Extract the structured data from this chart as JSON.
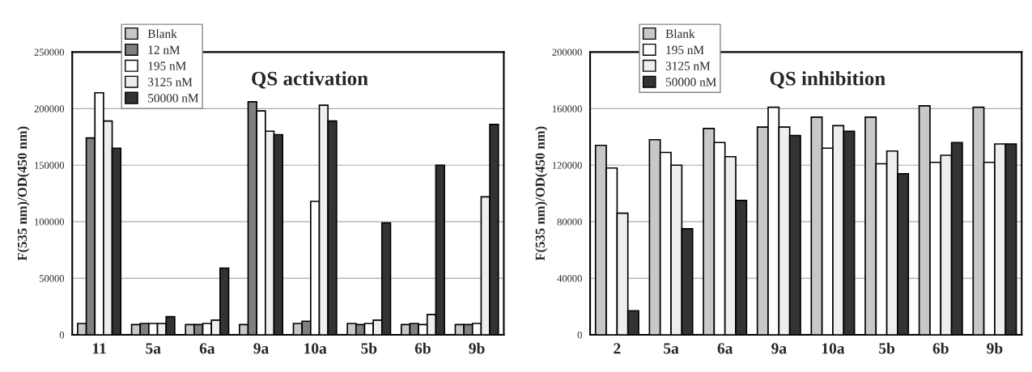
{
  "chart_data": [
    {
      "type": "bar",
      "title": "QS activation",
      "ylabel": "F(535 nm)/OD(450 nm)",
      "categories": [
        "11",
        "5a",
        "6a",
        "9a",
        "10a",
        "5b",
        "6b",
        "9b"
      ],
      "series": [
        {
          "name": "Blank",
          "color": "#c8c8c8",
          "values": [
            10000,
            9000,
            9000,
            9000,
            10000,
            10000,
            9000,
            9000
          ]
        },
        {
          "name": "12 nM",
          "color": "#808080",
          "values": [
            174000,
            10000,
            9000,
            206000,
            12000,
            9000,
            10000,
            9000
          ]
        },
        {
          "name": "195 nM",
          "color": "#ffffff",
          "values": [
            214000,
            10000,
            10000,
            198000,
            118000,
            10000,
            9000,
            10000
          ]
        },
        {
          "name": "3125 nM",
          "color": "#eeeeee",
          "values": [
            189000,
            10000,
            13000,
            180000,
            203000,
            13000,
            18000,
            122000
          ]
        },
        {
          "name": "50000 nM",
          "color": "#333333",
          "values": [
            165000,
            16000,
            59000,
            177000,
            189000,
            99000,
            150000,
            186000
          ]
        }
      ],
      "ylim": [
        0,
        250000
      ],
      "yticks": [
        0,
        50000,
        100000,
        150000,
        200000,
        250000
      ],
      "grid": "y",
      "legend": "top left"
    },
    {
      "type": "bar",
      "title": "QS inhibition",
      "ylabel": "F(535 nm)/OD(450 nm)",
      "categories": [
        "2",
        "5a",
        "6a",
        "9a",
        "10a",
        "5b",
        "6b",
        "9b"
      ],
      "series": [
        {
          "name": "Blank",
          "color": "#c8c8c8",
          "values": [
            134000,
            138000,
            146000,
            147000,
            154000,
            154000,
            162000,
            161000
          ]
        },
        {
          "name": "195 nM",
          "color": "#ffffff",
          "values": [
            118000,
            129000,
            136000,
            161000,
            132000,
            121000,
            122000,
            122000
          ]
        },
        {
          "name": "3125 nM",
          "color": "#eeeeee",
          "values": [
            86000,
            120000,
            126000,
            147000,
            148000,
            130000,
            127000,
            135000
          ]
        },
        {
          "name": "50000 nM",
          "color": "#333333",
          "values": [
            17000,
            75000,
            95000,
            141000,
            144000,
            114000,
            136000,
            135000
          ]
        }
      ],
      "ylim": [
        0,
        200000
      ],
      "yticks": [
        0,
        40000,
        80000,
        120000,
        160000,
        200000
      ],
      "grid": "y",
      "legend": "top left"
    }
  ]
}
